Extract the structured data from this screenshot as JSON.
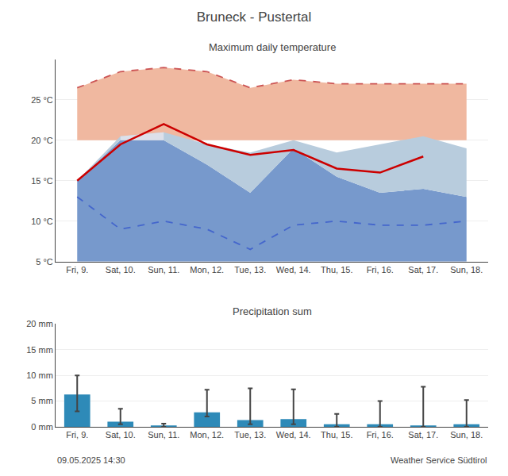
{
  "title": "Bruneck - Pustertal",
  "annotations": [
    "09.05.2025 14:30",
    "Weather Service Südtirol"
  ],
  "chart_data": [
    {
      "type": "line",
      "title": "Maximum daily temperature",
      "categories": [
        "Fri, 9.",
        "Sat, 10.",
        "Sun, 11.",
        "Mon, 12.",
        "Tue, 13.",
        "Wed, 14.",
        "Thu, 15.",
        "Fri, 16.",
        "Sat, 17.",
        "Sun, 18."
      ],
      "series": [
        {
          "type": "band",
          "color": "#f0b8a0",
          "lower": [
            20.0,
            20.0,
            20.0,
            20.0,
            20.0,
            20.0,
            20.0,
            20.0,
            20.0,
            20.0
          ],
          "upper": [
            26.5,
            28.5,
            29.0,
            28.5,
            26.5,
            27.5,
            27.0,
            27.0,
            27.0,
            27.0
          ]
        },
        {
          "type": "band",
          "color": "#7799cc",
          "lower": [
            5.0,
            5.0,
            5.0,
            5.0,
            5.0,
            5.0,
            5.0,
            5.0,
            5.0,
            5.0
          ],
          "upper": [
            15.0,
            20.0,
            20.0,
            17.0,
            13.5,
            19.0,
            15.5,
            13.5,
            14.0,
            13.0
          ]
        },
        {
          "type": "band",
          "color": "#b8ccdd",
          "lower": [
            15.0,
            20.0,
            20.0,
            17.0,
            13.5,
            19.0,
            15.5,
            13.5,
            14.0,
            13.0
          ],
          "upper": [
            15.0,
            20.5,
            21.0,
            19.5,
            18.5,
            20.0,
            18.5,
            19.5,
            20.5,
            19.0
          ]
        },
        {
          "type": "band",
          "color": "#dde0ea",
          "lower": [
            null,
            20.0,
            20.0,
            null,
            null,
            null,
            null,
            null,
            null,
            null
          ],
          "upper": [
            null,
            20.5,
            21.0,
            null,
            null,
            null,
            null,
            null,
            null,
            null
          ]
        },
        {
          "type": "line",
          "color": "#cc5555",
          "line_style": "dashed",
          "values": [
            26.5,
            28.5,
            29.0,
            28.5,
            26.5,
            27.5,
            27.0,
            27.0,
            27.0,
            27.0
          ]
        },
        {
          "type": "line",
          "color": "#4466cc",
          "line_style": "dashed",
          "values": [
            13.0,
            9.0,
            10.0,
            9.0,
            6.5,
            9.5,
            10.0,
            9.5,
            9.5,
            10.0
          ]
        },
        {
          "type": "line",
          "color": "#cc0000",
          "line_style": "solid",
          "values": [
            15.0,
            19.5,
            22.0,
            19.5,
            18.2,
            18.8,
            16.5,
            16.0,
            18.0,
            null
          ]
        }
      ],
      "ylim": [
        5,
        30
      ],
      "yticks": [
        {
          "value": 5,
          "label": "5 °C"
        },
        {
          "value": 10,
          "label": "10 °C"
        },
        {
          "value": 15,
          "label": "15 °C"
        },
        {
          "value": 20,
          "label": "20 °C"
        },
        {
          "value": 25,
          "label": "25 °C"
        }
      ],
      "grid": true
    },
    {
      "type": "bar",
      "title": "Precipitation sum",
      "categories": [
        "Fri, 9.",
        "Sat, 10.",
        "Sun, 11.",
        "Mon, 12.",
        "Tue, 13.",
        "Wed, 14.",
        "Thu, 15.",
        "Fri, 16.",
        "Sat, 17.",
        "Sun, 18."
      ],
      "values": [
        6.3,
        1.0,
        0.2,
        2.8,
        1.3,
        1.5,
        0.5,
        0.5,
        0.2,
        0.5
      ],
      "error_upper": [
        10.0,
        3.5,
        0.6,
        7.2,
        7.5,
        7.3,
        2.5,
        5.0,
        7.8,
        5.2
      ],
      "error_lower": [
        3.0,
        0.5,
        0.0,
        2.0,
        0.5,
        0.5,
        0.0,
        0.0,
        0.0,
        0.0
      ],
      "color": "#2e8ab8",
      "ylim": [
        0,
        20
      ],
      "yticks": [
        {
          "value": 0,
          "label": "0 mm"
        },
        {
          "value": 5,
          "label": "5 mm"
        },
        {
          "value": 10,
          "label": "10 mm"
        },
        {
          "value": 15,
          "label": "15 mm"
        },
        {
          "value": 20,
          "label": "20 mm"
        }
      ],
      "grid": true
    }
  ]
}
